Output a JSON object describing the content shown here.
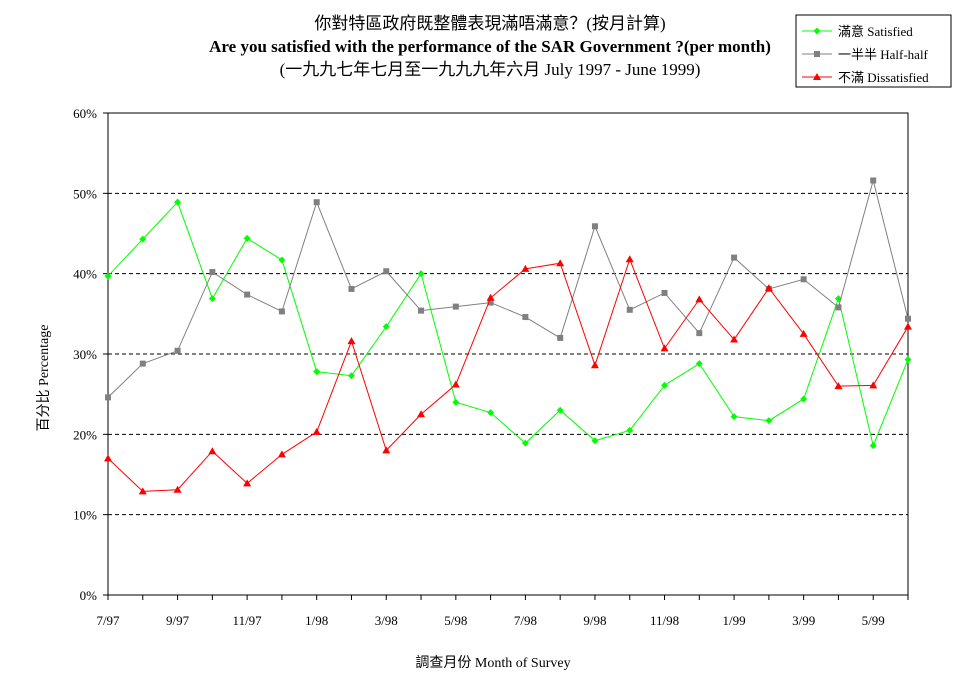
{
  "chart_data": {
    "type": "line",
    "title_zh": "你對特區政府既整體表現滿唔滿意？(按月計算)",
    "title": "Are you satisfied with the performance of the SAR Government ?(per month)",
    "subtitle": "(一九九七年七月至一九九九年六月 July 1997 - June 1999)",
    "xlabel": "調查月份 Month of Survey",
    "ylabel": "百分比 Percentage",
    "ylim": [
      0,
      60
    ],
    "yticks": [
      "0%",
      "10%",
      "20%",
      "30%",
      "40%",
      "50%",
      "60%"
    ],
    "grid": true,
    "legend_position": "top-right",
    "categories": [
      "7/97",
      "8/97",
      "9/97",
      "10/97",
      "11/97",
      "12/97",
      "1/98",
      "2/98",
      "3/98",
      "4/98",
      "5/98",
      "6/98",
      "7/98",
      "8/98",
      "9/98",
      "10/98",
      "11/98",
      "12/98",
      "1/99",
      "2/99",
      "3/99",
      "4/99",
      "5/99",
      "6/99"
    ],
    "xtick_labels": [
      "7/97",
      "9/97",
      "11/97",
      "1/98",
      "3/98",
      "5/98",
      "7/98",
      "9/98",
      "11/98",
      "1/99",
      "3/99",
      "5/99"
    ],
    "series": [
      {
        "name": "滿意 Satisfied",
        "color": "#00ff00",
        "marker": "diamond",
        "values": [
          39.7,
          44.3,
          48.9,
          36.9,
          44.4,
          41.7,
          27.8,
          27.3,
          33.4,
          40.0,
          24.0,
          22.7,
          18.9,
          23.0,
          19.2,
          20.5,
          26.1,
          28.8,
          22.2,
          21.7,
          24.4,
          36.9,
          18.6,
          29.3
        ]
      },
      {
        "name": "一半半 Half-half",
        "color": "#808080",
        "marker": "square",
        "values": [
          24.6,
          28.8,
          30.4,
          40.2,
          37.4,
          35.3,
          48.9,
          38.1,
          40.3,
          35.4,
          35.9,
          36.4,
          34.6,
          32.0,
          45.9,
          35.5,
          37.6,
          32.6,
          42.0,
          38.1,
          39.3,
          35.8,
          51.6,
          34.4
        ]
      },
      {
        "name": "不滿 Dissatisfied",
        "color": "#ff0000",
        "marker": "triangle",
        "values": [
          17.0,
          12.9,
          13.1,
          17.9,
          13.9,
          17.5,
          20.3,
          31.6,
          18.0,
          22.5,
          26.2,
          37.0,
          40.6,
          41.3,
          28.6,
          41.8,
          30.7,
          36.8,
          31.8,
          38.2,
          32.5,
          26.0,
          26.1,
          33.4
        ]
      }
    ]
  }
}
